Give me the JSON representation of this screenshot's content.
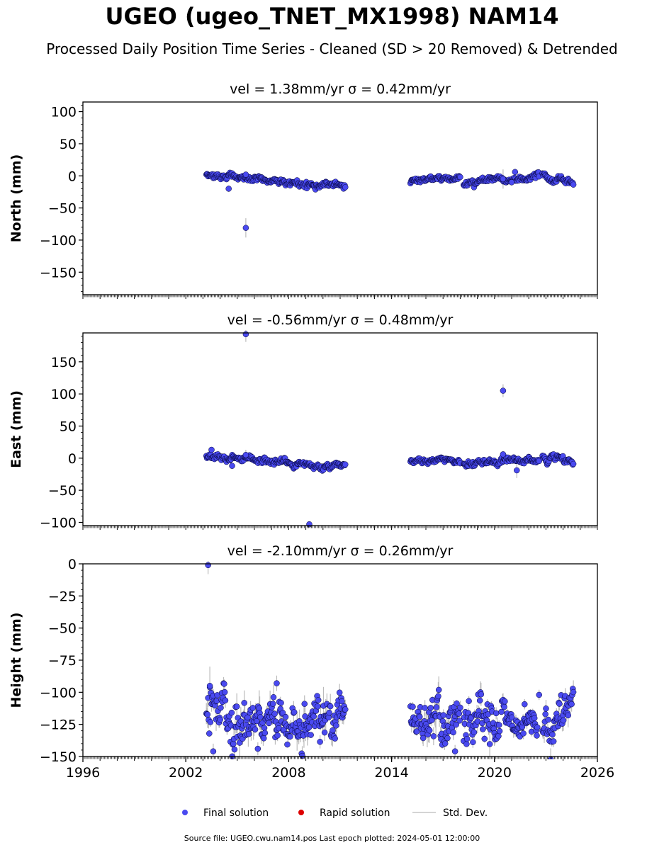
{
  "title": "UGEO (ugeo_TNET_MX1998) NAM14",
  "subtitle": "Processed Daily Position Time Series - Cleaned (SD > 20 Removed) & Detrended",
  "footer": "Source file: UGEO.cwu.nam14.pos  Last epoch plotted: 2024-05-01 12:00:00",
  "colors": {
    "final": "#4a4af0",
    "rapid": "#dd0000",
    "stddev": "#bbbbbb",
    "edge": "#000033"
  },
  "legend": {
    "placement": "bottom-center",
    "items": [
      {
        "label": "Final solution",
        "type": "marker",
        "color": "#4a4af0"
      },
      {
        "label": "Rapid solution",
        "type": "marker",
        "color": "#dd0000"
      },
      {
        "label": "Std. Dev.",
        "type": "line",
        "color": "#bbbbbb"
      }
    ]
  },
  "chart_data": [
    {
      "type": "scatter",
      "panel": "north",
      "title": "vel = 1.38mm/yr   σ = 0.42mm/yr",
      "ylabel": "North (mm)",
      "xlim": [
        1996,
        2026
      ],
      "ylim": [
        -185,
        115
      ],
      "yticks": [
        100,
        50,
        0,
        -50,
        -100,
        -150
      ],
      "xticks": [],
      "series": [
        {
          "segments": [
            {
              "x0": 2003.2,
              "x1": 2011.3,
              "y0": 1,
              "y1": -16,
              "noise": 2.5
            },
            {
              "x0": 2015.1,
              "x1": 2018.0,
              "y0": -10,
              "y1": -2,
              "noise": 2
            },
            {
              "x0": 2018.2,
              "x1": 2022.6,
              "y0": -12,
              "y1": -1,
              "noise": 2.5
            },
            {
              "x0": 2022.8,
              "x1": 2024.6,
              "y0": 2,
              "y1": -12,
              "noise": 3
            }
          ],
          "outliers": [
            {
              "x": 2005.5,
              "y": -81,
              "sd": 15
            },
            {
              "x": 2004.5,
              "y": -20,
              "sd": 5
            },
            {
              "x": 2005.5,
              "y": 2,
              "sd": 4
            },
            {
              "x": 2021.2,
              "y": 6,
              "sd": 5
            },
            {
              "x": 2021.0,
              "y": -10,
              "sd": 5
            },
            {
              "x": 2020.5,
              "y": -5,
              "sd": 15
            }
          ]
        }
      ]
    },
    {
      "type": "scatter",
      "panel": "east",
      "title": "vel = -0.56mm/yr   σ = 0.48mm/yr",
      "ylabel": "East (mm)",
      "xlim": [
        1996,
        2026
      ],
      "ylim": [
        -105,
        195
      ],
      "yticks": [
        150,
        100,
        50,
        0,
        -50,
        -100
      ],
      "xticks": [],
      "series": [
        {
          "segments": [
            {
              "x0": 2003.2,
              "x1": 2011.3,
              "y0": 2,
              "y1": -13,
              "noise": 2.5
            },
            {
              "x0": 2015.1,
              "x1": 2018.0,
              "y0": -5,
              "y1": -3,
              "noise": 2
            },
            {
              "x0": 2018.2,
              "x1": 2022.6,
              "y0": -8,
              "y1": -2,
              "noise": 2.5
            },
            {
              "x0": 2022.8,
              "x1": 2024.6,
              "y0": 2,
              "y1": -6,
              "noise": 3
            }
          ],
          "outliers": [
            {
              "x": 2005.5,
              "y": 193,
              "sd": 12
            },
            {
              "x": 2009.2,
              "y": -103,
              "sd": 3
            },
            {
              "x": 2020.5,
              "y": 105,
              "sd": 10
            },
            {
              "x": 2021.3,
              "y": -19,
              "sd": 12
            },
            {
              "x": 2003.5,
              "y": 13,
              "sd": 4
            },
            {
              "x": 2005.5,
              "y": 5,
              "sd": 8
            },
            {
              "x": 2020.5,
              "y": 6,
              "sd": 4
            },
            {
              "x": 2004.7,
              "y": -12,
              "sd": 3
            }
          ]
        }
      ]
    },
    {
      "type": "scatter",
      "panel": "height",
      "title": "vel = -2.10mm/yr   σ = 0.26mm/yr",
      "ylabel": "Height (mm)",
      "xlim": [
        1996,
        2026
      ],
      "ylim": [
        -150,
        0
      ],
      "yticks": [
        0,
        -25,
        -50,
        -75,
        -100,
        -125,
        -150
      ],
      "xticks": [
        1996,
        2002,
        2008,
        2014,
        2020,
        2026
      ],
      "series": [
        {
          "segments": [
            {
              "x0": 2003.2,
              "x1": 2011.3,
              "y0": -120,
              "y1": -120,
              "noise": 10
            },
            {
              "x0": 2015.1,
              "x1": 2018.0,
              "y0": -120,
              "y1": -125,
              "noise": 9
            },
            {
              "x0": 2018.2,
              "x1": 2020.3,
              "y0": -120,
              "y1": -125,
              "noise": 9
            },
            {
              "x0": 2020.4,
              "x1": 2022.5,
              "y0": -118,
              "y1": -127,
              "noise": 6
            },
            {
              "x0": 2022.8,
              "x1": 2024.6,
              "y0": -125,
              "y1": -118,
              "noise": 9
            }
          ],
          "outliers": [
            {
              "x": 2003.3,
              "y": -1,
              "sd": 7
            },
            {
              "x": 2003.4,
              "y": -95,
              "sd": 15
            },
            {
              "x": 2007.3,
              "y": -93,
              "sd": 6
            },
            {
              "x": 2003.6,
              "y": -146,
              "sd": 6
            },
            {
              "x": 2017.7,
              "y": -146,
              "sd": 5
            },
            {
              "x": 2006.2,
              "y": -144,
              "sd": 5
            },
            {
              "x": 2022.6,
              "y": -102,
              "sd": 4
            }
          ]
        }
      ]
    }
  ]
}
